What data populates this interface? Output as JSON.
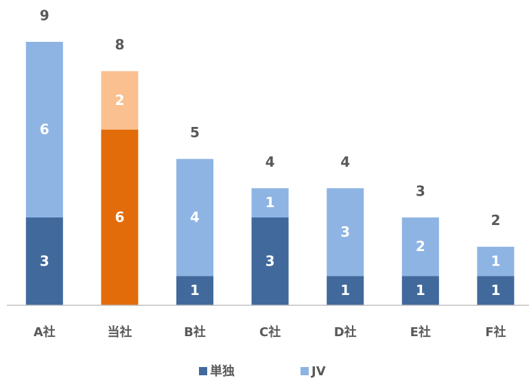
{
  "chart_data": {
    "type": "stacked_bar",
    "categories": [
      "A社",
      "当社",
      "B社",
      "C社",
      "D社",
      "E社",
      "F社"
    ],
    "series": [
      {
        "name": "単独",
        "color": "#41699c",
        "colors": [
          "#41699c",
          "#e36c0a",
          "#41699c",
          "#41699c",
          "#41699c",
          "#41699c",
          "#41699c"
        ],
        "values": [
          3,
          6,
          1,
          3,
          1,
          1,
          1
        ]
      },
      {
        "name": "JV",
        "color": "#8eb4e3",
        "colors": [
          "#8eb4e3",
          "#fac090",
          "#8eb4e3",
          "#8eb4e3",
          "#8eb4e3",
          "#8eb4e3",
          "#8eb4e3"
        ],
        "values": [
          6,
          2,
          4,
          1,
          3,
          2,
          1
        ]
      }
    ],
    "totals": [
      9,
      8,
      5,
      4,
      4,
      3,
      2
    ],
    "ylim": [
      0,
      9
    ],
    "legend": "bottom"
  }
}
